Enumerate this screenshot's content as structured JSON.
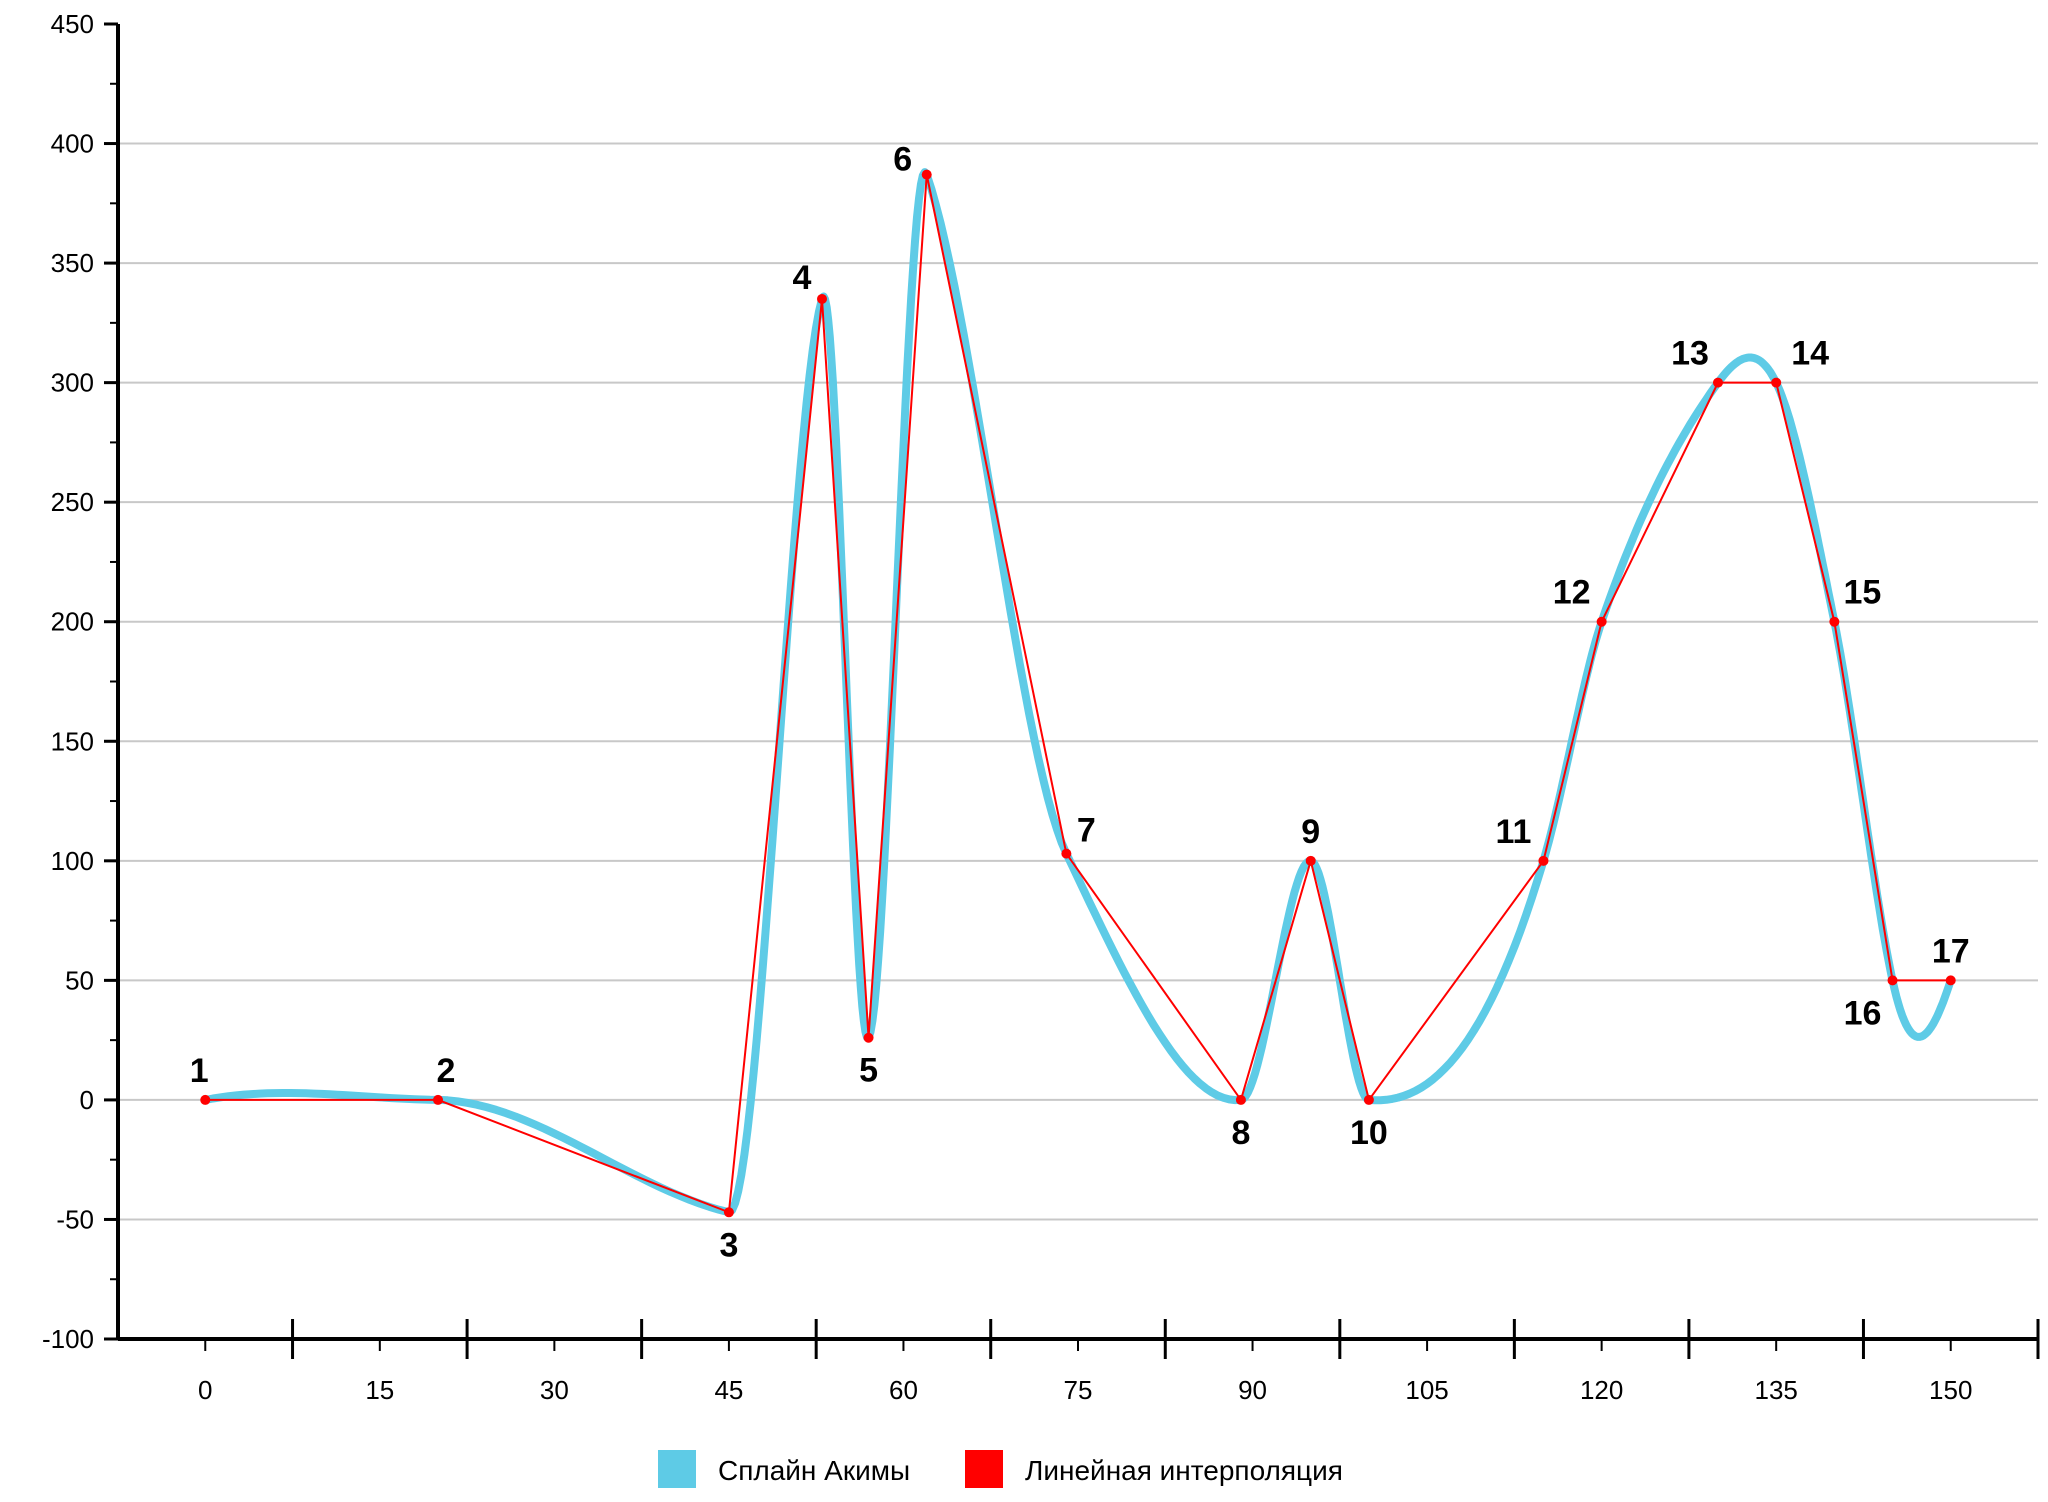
{
  "chart_data": {
    "type": "line",
    "title": "",
    "xlabel": "",
    "ylabel": "",
    "xlim": [
      -7.5,
      157.5
    ],
    "ylim": [
      -100,
      450
    ],
    "x_ticks": [
      0,
      15,
      30,
      45,
      60,
      75,
      90,
      105,
      120,
      135,
      150
    ],
    "x_tick_labels": [
      "0",
      "15",
      "30",
      "45",
      "60",
      "75",
      "90",
      "105",
      "120",
      "135",
      "150"
    ],
    "y_ticks": [
      -100,
      -50,
      0,
      50,
      100,
      150,
      200,
      250,
      300,
      350,
      400,
      450
    ],
    "y_tick_labels": [
      "-100",
      "-50",
      "0",
      "50",
      "100",
      "150",
      "200",
      "250",
      "300",
      "350",
      "400",
      "450"
    ],
    "grid": "horizontal",
    "legend_position": "bottom-center",
    "points": {
      "labels": [
        "1",
        "2",
        "3",
        "4",
        "5",
        "6",
        "7",
        "8",
        "9",
        "10",
        "11",
        "12",
        "13",
        "14",
        "15",
        "16",
        "17"
      ],
      "x": [
        0,
        20,
        45,
        53,
        57,
        62,
        74,
        89,
        95,
        100,
        115,
        120,
        130,
        135,
        140,
        145,
        150
      ],
      "y": [
        0,
        0,
        -47,
        335,
        26,
        387,
        103,
        0,
        100,
        0,
        100,
        200,
        300,
        300,
        200,
        50,
        50
      ]
    },
    "series": [
      {
        "name": "Сплайн Акимы",
        "color": "#5ecbe6",
        "method": "akima"
      },
      {
        "name": "Линейная интерполяция",
        "color": "#ff0000",
        "method": "linear"
      }
    ]
  }
}
